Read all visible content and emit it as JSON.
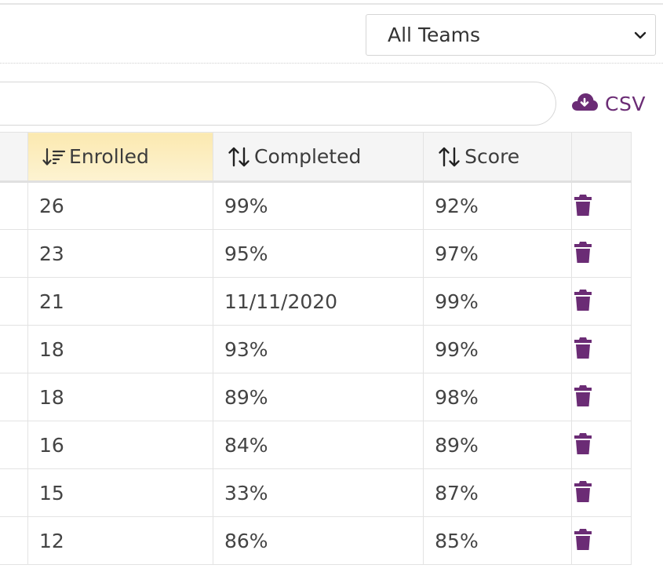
{
  "filter": {
    "team_select_value": "All Teams"
  },
  "toolbar": {
    "csv_label": "CSV",
    "csv_icon": "cloud-download-icon",
    "accent_color": "#6b2c75"
  },
  "table": {
    "columns": [
      {
        "label": "",
        "key": "name"
      },
      {
        "label": "Enrolled",
        "key": "enrolled",
        "sort": "descending",
        "icon": "sort-amount-down-icon"
      },
      {
        "label": "Completed",
        "key": "completed",
        "sort": "none",
        "icon": "sort-arrows-icon"
      },
      {
        "label": "Score",
        "key": "score",
        "sort": "none",
        "icon": "sort-arrows-icon"
      },
      {
        "label": "",
        "key": "actions"
      }
    ],
    "rows": [
      {
        "enrolled": "26",
        "completed": "99%",
        "score": "92%"
      },
      {
        "enrolled": "23",
        "completed": "95%",
        "score": "97%"
      },
      {
        "enrolled": "21",
        "completed": "11/11/2020",
        "score": "99%"
      },
      {
        "enrolled": "18",
        "completed": "93%",
        "score": "99%"
      },
      {
        "enrolled": "18",
        "completed": "89%",
        "score": "98%"
      },
      {
        "enrolled": "16",
        "completed": "84%",
        "score": "89%"
      },
      {
        "enrolled": "15",
        "completed": "33%",
        "score": "87%"
      },
      {
        "enrolled": "12",
        "completed": "86%",
        "score": "85%"
      }
    ],
    "row_action_icon": "trash-icon",
    "sorted_header_color": "#fcefc4",
    "header_bg_color": "#f5f5f5"
  }
}
